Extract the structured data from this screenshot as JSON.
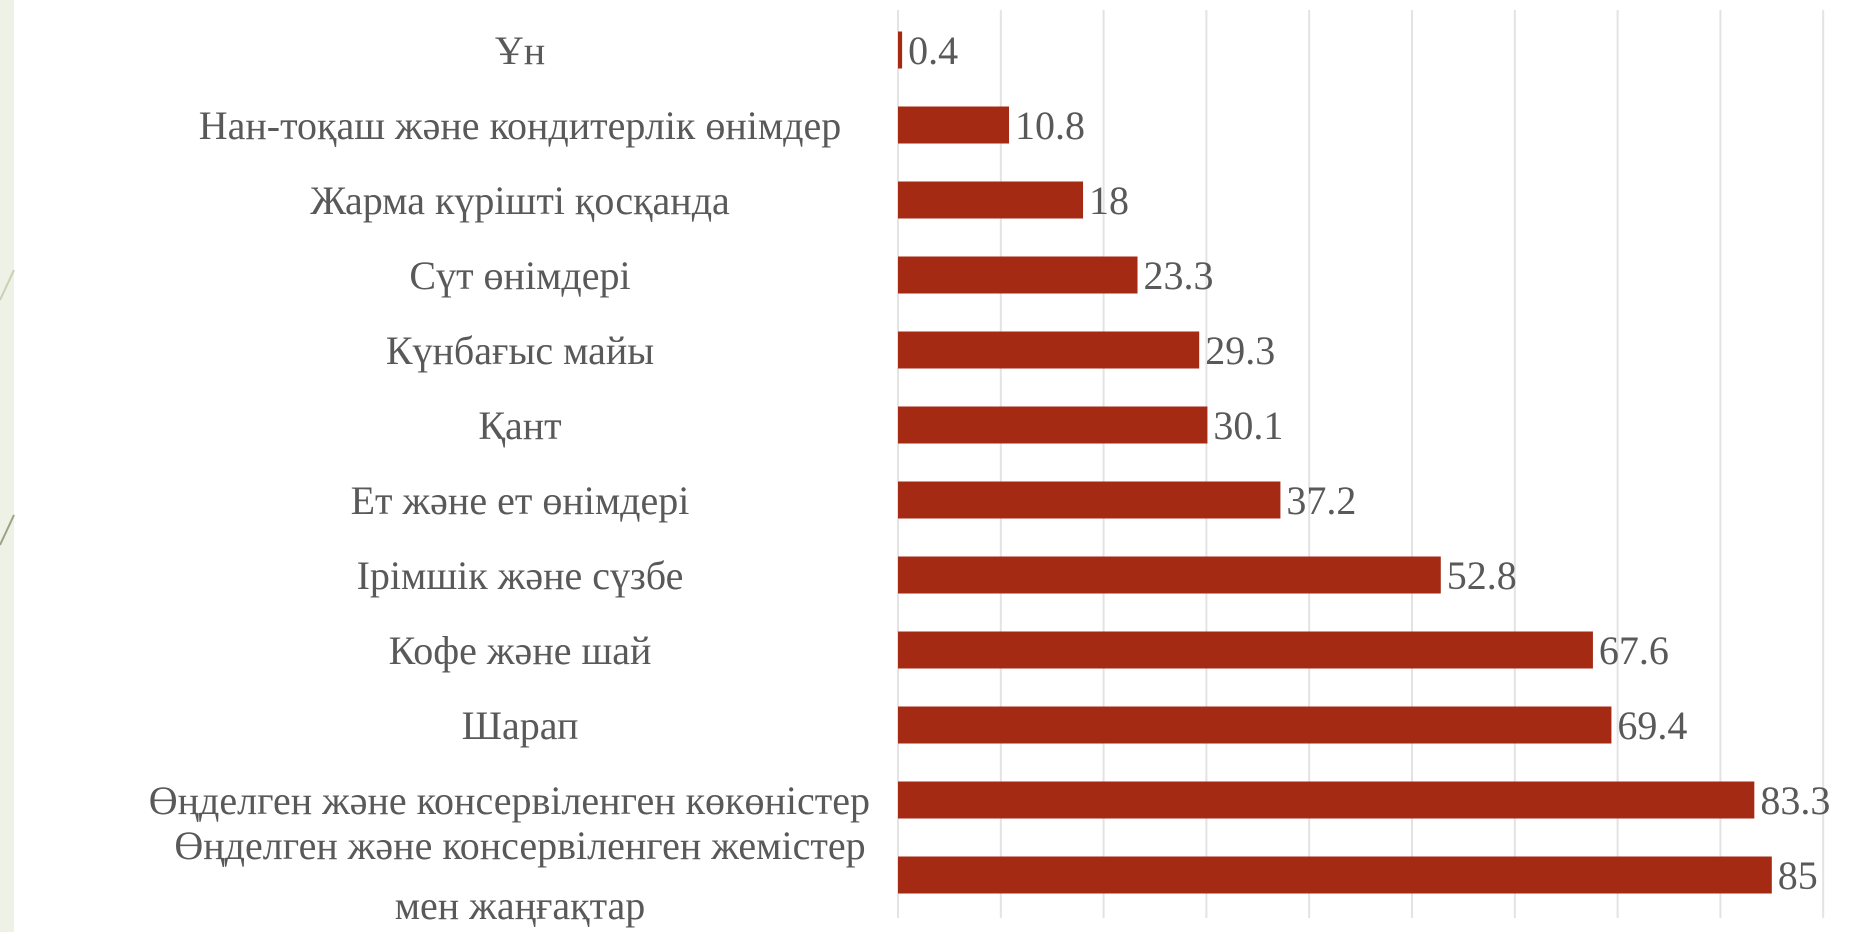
{
  "colors": {
    "bar": "#a52a14",
    "label": "#595959",
    "grid": "#e3e3e3",
    "page_strip": "#eef1e6"
  },
  "chart_data": {
    "type": "bar",
    "orientation": "horizontal",
    "title": "",
    "xlabel": "",
    "ylabel": "",
    "xlim": [
      0,
      90
    ],
    "grid": true,
    "legend": "none",
    "categories": [
      "Ұн",
      "Нан-тоқаш және кондитерлік өнімдер",
      "Жарма күрішті қосқанда",
      "Сүт өнімдері",
      "Күнбағыс майы",
      "Қант",
      "Ет және ет өнімдері",
      "Ірімшік және сүзбе",
      "Кофе және шай",
      "Шарап",
      "Өңделген және консервіленген көкөністер",
      "Өңделген және консервіленген жемістер мен жаңғақтар"
    ],
    "values": [
      0.4,
      10.8,
      18,
      23.3,
      29.3,
      30.1,
      37.2,
      52.8,
      67.6,
      69.4,
      83.3,
      85
    ],
    "value_labels": [
      "0.4",
      "10.8",
      "18",
      "23.3",
      "29.3",
      "30.1",
      "37.2",
      "52.8",
      "67.6",
      "69.4",
      "83.3",
      "85"
    ]
  }
}
